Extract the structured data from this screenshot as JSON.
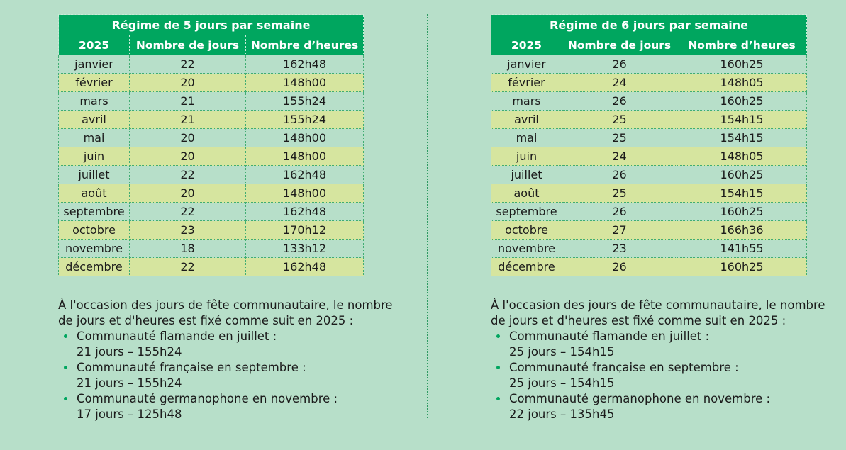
{
  "intro_line1": "À l'occasion des jours de fête communautaire, le nombre",
  "intro_line2": "de jours et d'heures est fixé comme suit en 2025 :",
  "tables": [
    {
      "title": "Régime de 5 jours par semaine",
      "headers": [
        "2025",
        "Nombre de jours",
        "Nombre d’heures"
      ],
      "rows": [
        [
          "janvier",
          "22",
          "162h48"
        ],
        [
          "février",
          "20",
          "148h00"
        ],
        [
          "mars",
          "21",
          "155h24"
        ],
        [
          "avril",
          "21",
          "155h24"
        ],
        [
          "mai",
          "20",
          "148h00"
        ],
        [
          "juin",
          "20",
          "148h00"
        ],
        [
          "juillet",
          "22",
          "162h48"
        ],
        [
          "août",
          "20",
          "148h00"
        ],
        [
          "septembre",
          "22",
          "162h48"
        ],
        [
          "octobre",
          "23",
          "170h12"
        ],
        [
          "novembre",
          "18",
          "133h12"
        ],
        [
          "décembre",
          "22",
          "162h48"
        ]
      ],
      "communities": [
        [
          "Communauté flamande en juillet :",
          "21 jours – 155h24"
        ],
        [
          "Communauté française en septembre :",
          "21 jours – 155h24"
        ],
        [
          "Communauté germanophone en novembre :",
          "17 jours – 125h48"
        ]
      ]
    },
    {
      "title": "Régime de 6 jours par semaine",
      "headers": [
        "2025",
        "Nombre de jours",
        "Nombre d’heures"
      ],
      "rows": [
        [
          "janvier",
          "26",
          "160h25"
        ],
        [
          "février",
          "24",
          "148h05"
        ],
        [
          "mars",
          "26",
          "160h25"
        ],
        [
          "avril",
          "25",
          "154h15"
        ],
        [
          "mai",
          "25",
          "154h15"
        ],
        [
          "juin",
          "24",
          "148h05"
        ],
        [
          "juillet",
          "26",
          "160h25"
        ],
        [
          "août",
          "25",
          "154h15"
        ],
        [
          "septembre",
          "26",
          "160h25"
        ],
        [
          "octobre",
          "27",
          "166h36"
        ],
        [
          "novembre",
          "23",
          "141h55"
        ],
        [
          "décembre",
          "26",
          "160h25"
        ]
      ],
      "communities": [
        [
          "Communauté flamande en juillet :",
          "25 jours – 154h15"
        ],
        [
          "Communauté française en septembre :",
          "25 jours – 154h15"
        ],
        [
          "Communauté germanophone en novembre :",
          "22 jours – 135h45"
        ]
      ]
    }
  ]
}
